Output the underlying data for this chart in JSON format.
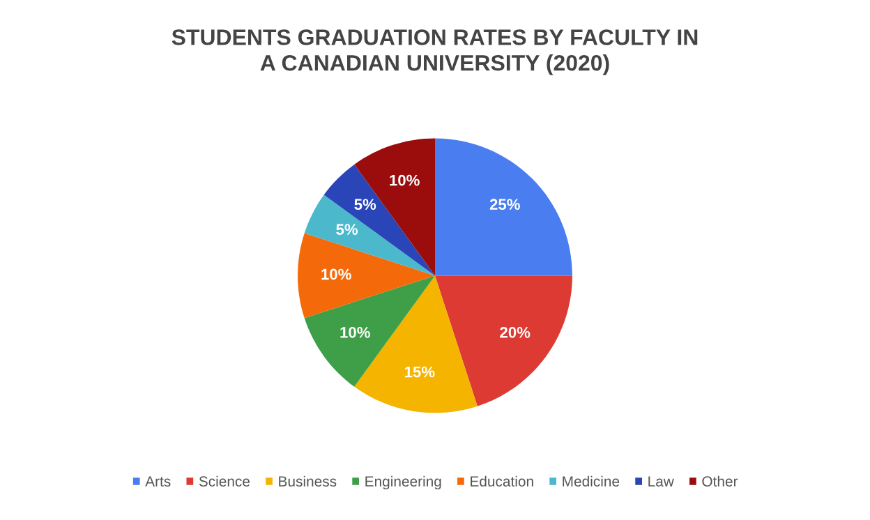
{
  "chart_data": {
    "type": "pie",
    "title": "STUDENTS GRADUATION RATES BY FACULTY IN\nA CANADIAN UNIVERSITY (2020)",
    "categories": [
      "Arts",
      "Science",
      "Business",
      "Engineering",
      "Education",
      "Medicine",
      "Law",
      "Other"
    ],
    "values": [
      25,
      20,
      15,
      10,
      10,
      5,
      5,
      10
    ],
    "value_labels": [
      "25%",
      "20%",
      "15%",
      "10%",
      "10%",
      "5%",
      "5%",
      "10%"
    ],
    "colors": [
      "#4a7ef0",
      "#dc3a32",
      "#f4b400",
      "#3f9f48",
      "#f46a0a",
      "#4bb8cc",
      "#2a45b8",
      "#9b0d0d"
    ],
    "legend": "bottom"
  }
}
